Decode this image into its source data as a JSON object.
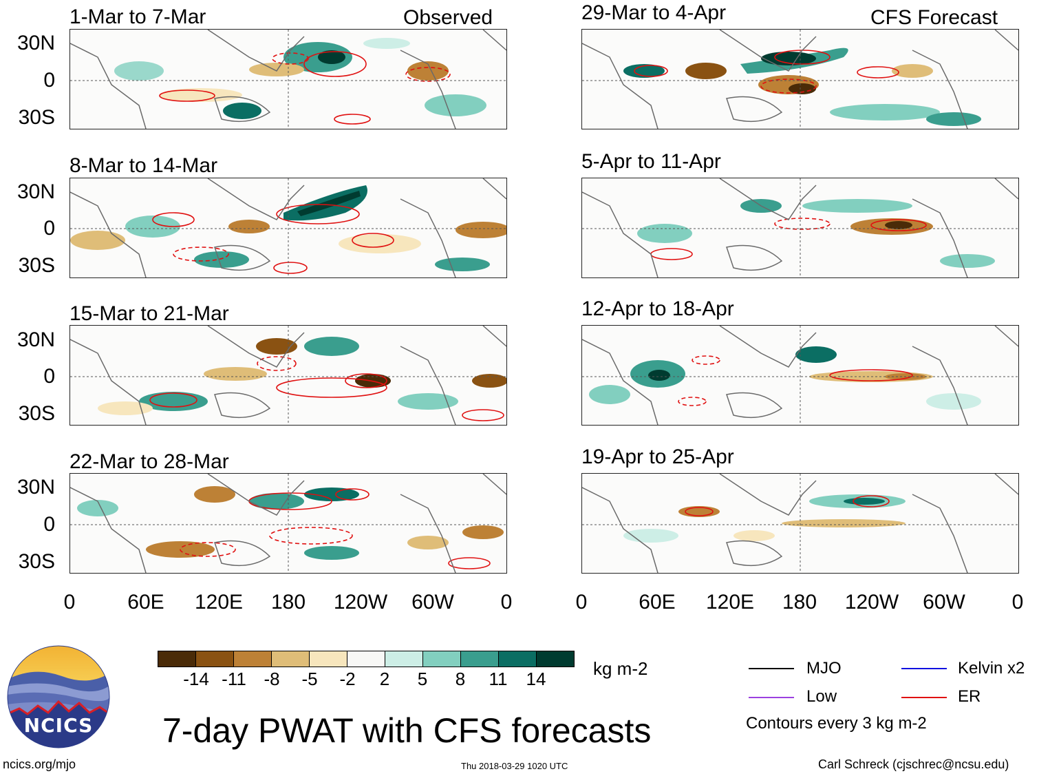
{
  "headers": {
    "left": "Observed",
    "right": "CFS Forecast"
  },
  "panels_left": [
    {
      "title": "1-Mar to 7-Mar"
    },
    {
      "title": "8-Mar to 14-Mar"
    },
    {
      "title": "15-Mar to 21-Mar"
    },
    {
      "title": "22-Mar to 28-Mar"
    }
  ],
  "panels_right": [
    {
      "title": "29-Mar to 4-Apr"
    },
    {
      "title": "5-Apr to 11-Apr"
    },
    {
      "title": "12-Apr to 18-Apr"
    },
    {
      "title": "19-Apr to 25-Apr"
    }
  ],
  "y_ticks": [
    "30N",
    "0",
    "30S"
  ],
  "x_ticks": [
    "0",
    "60E",
    "120E",
    "180",
    "120W",
    "60W",
    "0"
  ],
  "colorbar": {
    "labels": [
      "-14",
      "-11",
      "-8",
      "-5",
      "-2",
      "2",
      "5",
      "8",
      "11",
      "14"
    ],
    "colors": [
      "#4a2b08",
      "#8a5212",
      "#bd8136",
      "#dfbd78",
      "#f7e6bd",
      "#f8f8f6",
      "#cdeee6",
      "#82cfbf",
      "#3a9e8e",
      "#0b6e63",
      "#003b30"
    ],
    "units": "kg m-2"
  },
  "legend": {
    "items": [
      {
        "label": "MJO",
        "color": "#000000"
      },
      {
        "label": "Kelvin x2",
        "color": "#1010e0"
      },
      {
        "label": "Low",
        "color": "#9b40e0"
      },
      {
        "label": "ER",
        "color": "#e01010"
      }
    ],
    "note": "Contours every 3 kg m-2"
  },
  "main_title": "7-day PWAT with CFS forecasts",
  "logo": {
    "text": "NCICS"
  },
  "footer": {
    "url": "ncics.org/mjo",
    "timestamp": "Thu 2018-03-29 1020 UTC",
    "author": "Carl Schreck (cjschrec@ncsu.edu)"
  }
}
